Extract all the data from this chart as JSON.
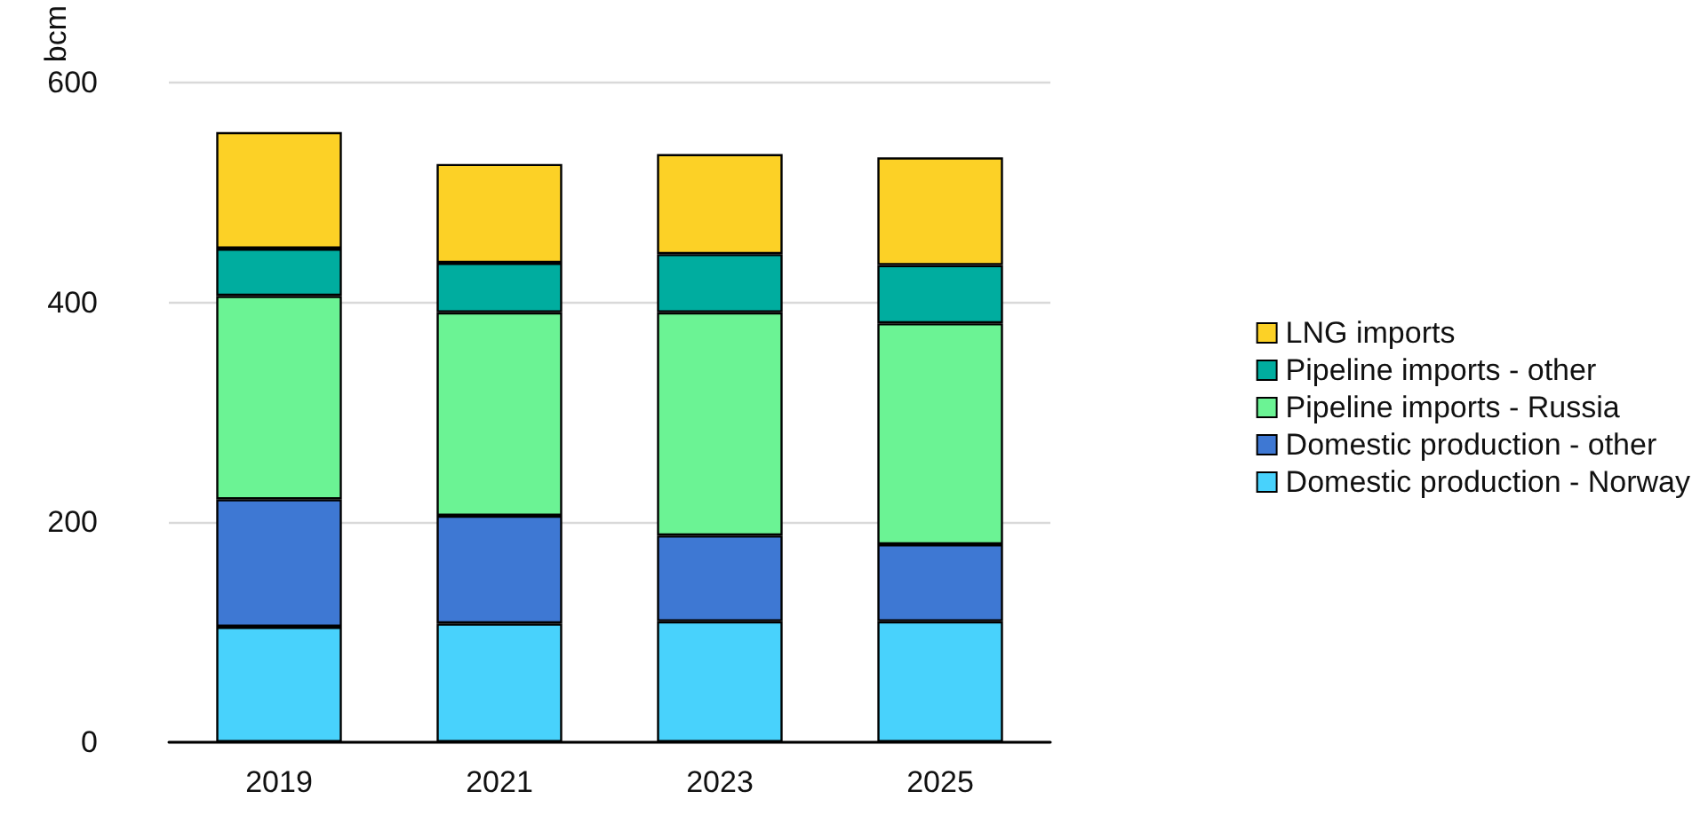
{
  "chart_data": {
    "type": "bar",
    "stacked": true,
    "ylabel": "bcm",
    "categories": [
      "2019",
      "2021",
      "2023",
      "2025"
    ],
    "series": [
      {
        "name": "Domestic production - Norway",
        "color": "#48d2fc",
        "values": [
          105,
          108,
          110,
          110
        ]
      },
      {
        "name": "Domestic production - other",
        "color": "#3e78d3",
        "values": [
          116,
          98,
          78,
          70
        ]
      },
      {
        "name": "Pipeline imports - Russia",
        "color": "#6bf394",
        "values": [
          185,
          185,
          203,
          201
        ]
      },
      {
        "name": "Pipeline imports - other",
        "color": "#00ad9f",
        "values": [
          43,
          45,
          53,
          53
        ]
      },
      {
        "name": "LNG imports",
        "color": "#fcd126",
        "values": [
          106,
          90,
          91,
          98
        ]
      }
    ],
    "ylim": [
      0,
      600
    ],
    "yticks": [
      0,
      200,
      400,
      600
    ],
    "grid": "y",
    "legend": "right"
  }
}
